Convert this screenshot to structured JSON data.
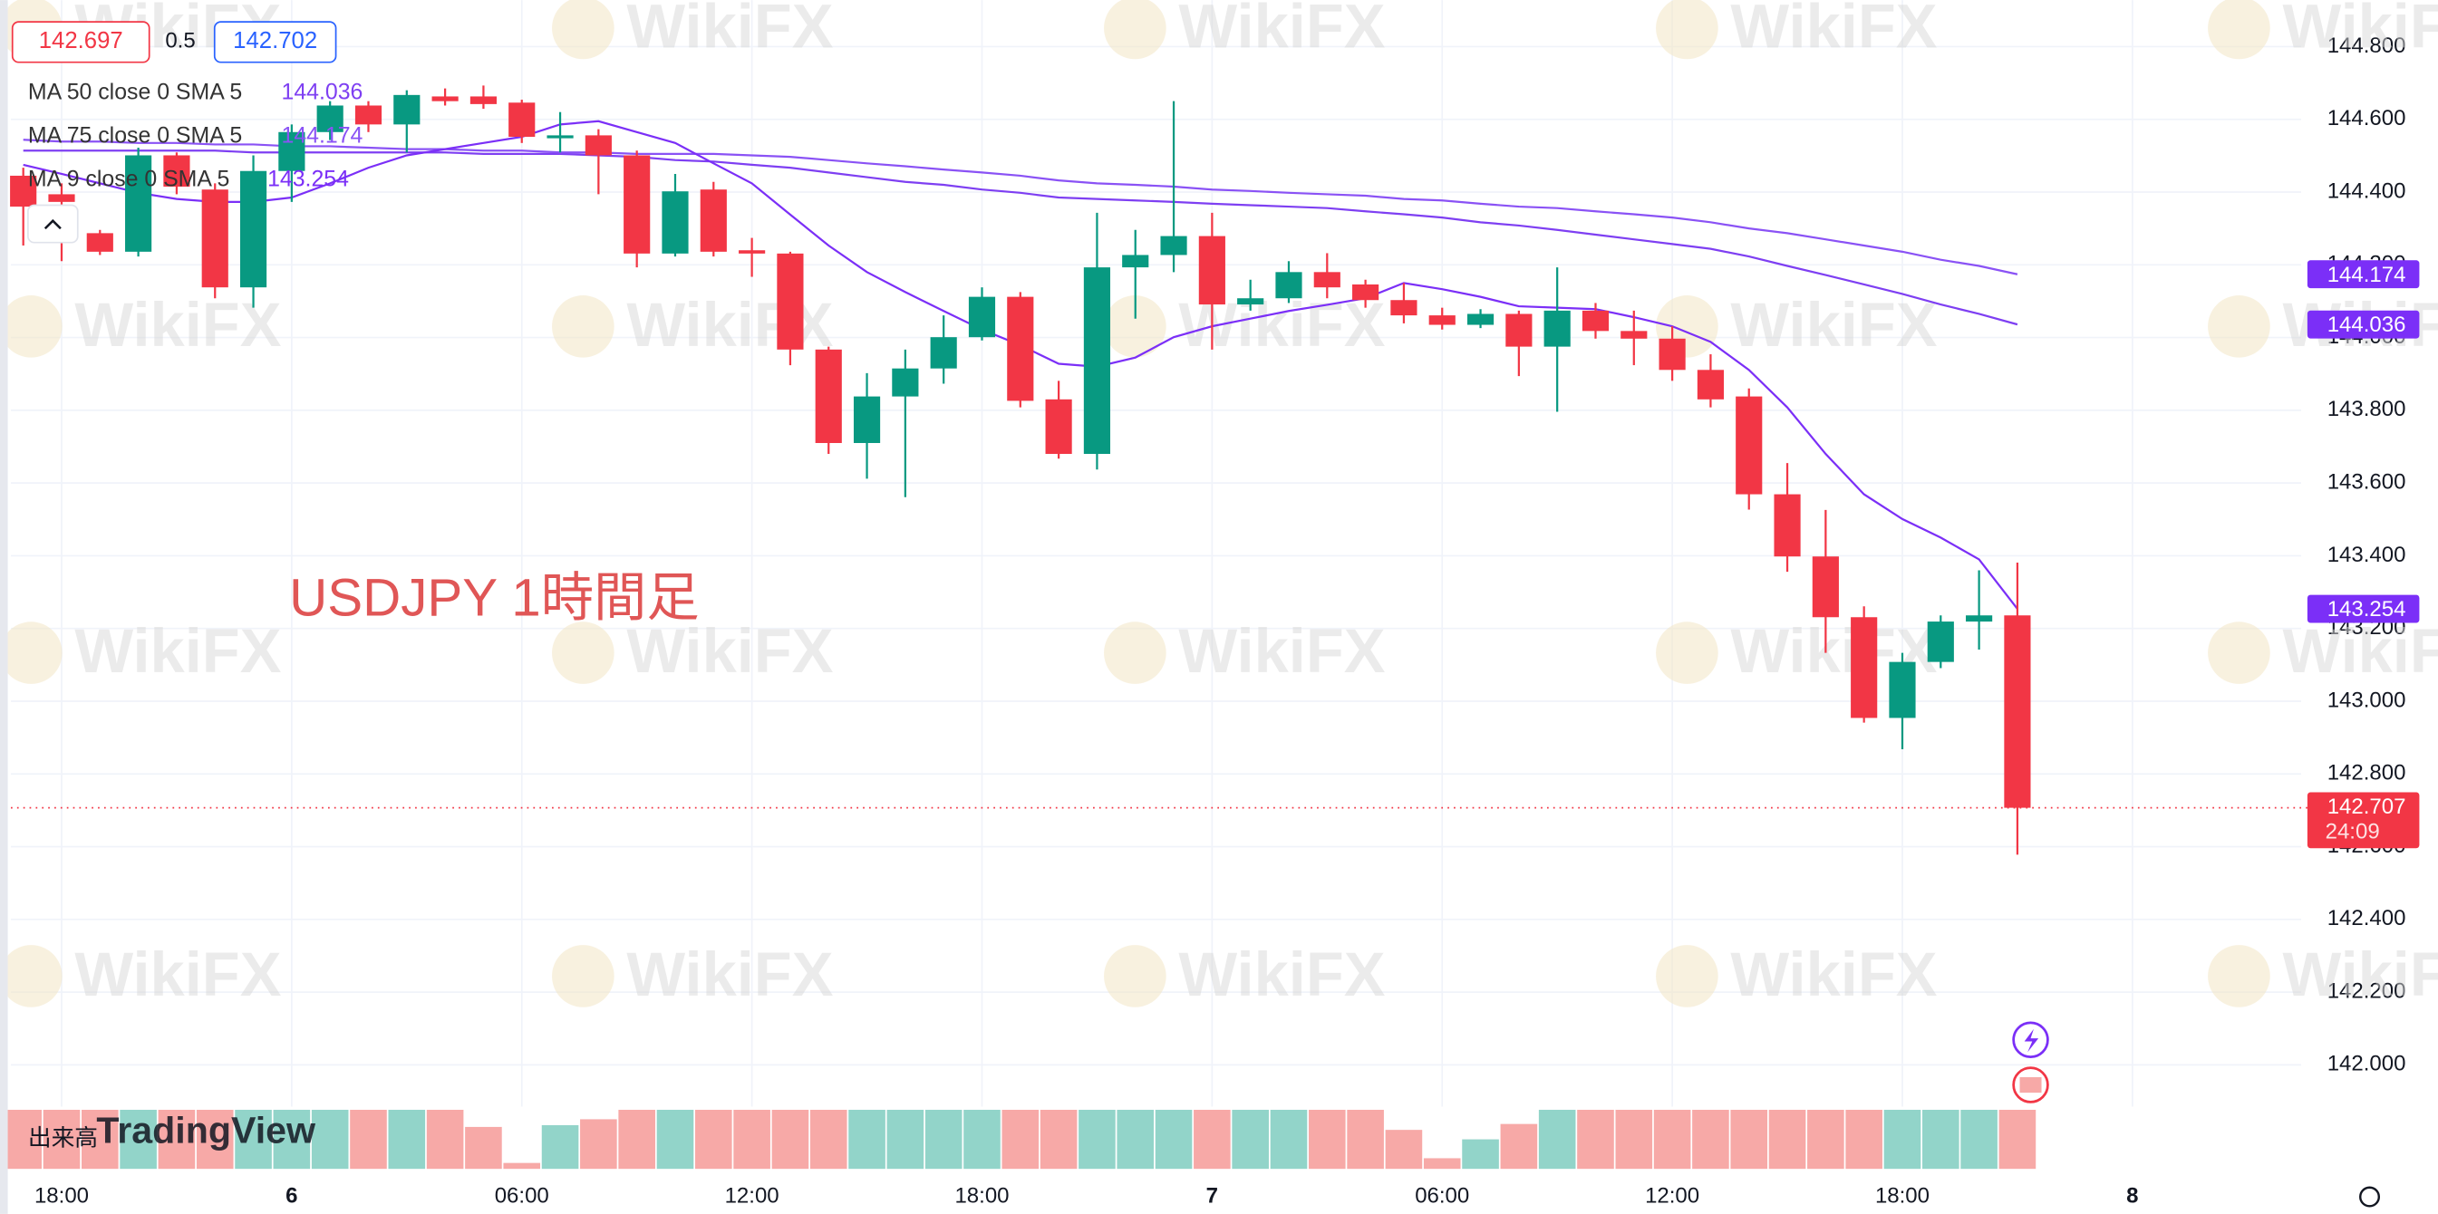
{
  "chart_data": {
    "type": "candlestick",
    "annotation": "USDJPY 1時間足",
    "watermark": "WikiFX",
    "logo": "TradingView",
    "quote": {
      "bid": 142.697,
      "spread": 0.5,
      "ask": 142.702
    },
    "up_color": "#089981",
    "down_color": "#f23645",
    "open": [
      144.445,
      144.394,
      144.287,
      144.236,
      144.501,
      144.407,
      144.138,
      144.458,
      144.565,
      144.638,
      144.586,
      144.663,
      144.663,
      144.646,
      144.548,
      144.556,
      144.501,
      144.231,
      144.407,
      144.24,
      144.231,
      143.967,
      143.71,
      143.838,
      143.915,
      144.001,
      144.112,
      143.83,
      143.68,
      144.193,
      144.227,
      144.279,
      144.091,
      144.108,
      144.18,
      144.146,
      144.103,
      144.061,
      144.035,
      144.065,
      143.975,
      144.074,
      144.018,
      143.997,
      143.911,
      143.838,
      143.569,
      143.398,
      143.231,
      142.954,
      143.108,
      143.219,
      143.236
    ],
    "high": [
      144.467,
      144.424,
      144.296,
      144.522,
      144.509,
      144.424,
      144.501,
      144.586,
      144.65,
      144.65,
      144.68,
      144.685,
      144.693,
      144.654,
      144.62,
      144.573,
      144.514,
      144.45,
      144.428,
      144.274,
      144.236,
      143.975,
      143.902,
      143.967,
      144.061,
      144.138,
      144.125,
      143.881,
      144.343,
      144.296,
      144.65,
      144.343,
      144.159,
      144.21,
      144.232,
      144.159,
      144.15,
      144.082,
      144.078,
      144.074,
      144.193,
      144.095,
      144.074,
      144.031,
      143.954,
      143.86,
      143.655,
      143.526,
      143.261,
      143.133,
      143.236,
      143.36,
      143.381
    ],
    "low": [
      144.253,
      144.21,
      144.227,
      144.223,
      144.394,
      144.108,
      144.082,
      144.373,
      144.543,
      144.565,
      144.509,
      144.638,
      144.629,
      144.535,
      144.509,
      144.394,
      144.193,
      144.223,
      144.223,
      144.167,
      143.924,
      143.68,
      143.612,
      143.561,
      143.873,
      143.992,
      143.808,
      143.667,
      143.637,
      144.052,
      144.18,
      143.967,
      144.074,
      144.095,
      144.108,
      144.082,
      144.039,
      144.022,
      144.026,
      143.894,
      143.796,
      143.997,
      143.924,
      143.881,
      143.808,
      143.527,
      143.356,
      143.133,
      142.941,
      142.868,
      143.091,
      143.142,
      142.578
    ],
    "close": [
      144.36,
      144.373,
      144.236,
      144.501,
      144.415,
      144.138,
      144.458,
      144.565,
      144.638,
      144.586,
      144.667,
      144.65,
      144.642,
      144.552,
      144.556,
      144.501,
      144.231,
      144.402,
      144.236,
      144.231,
      143.967,
      143.71,
      143.838,
      143.915,
      144.001,
      144.112,
      143.826,
      143.68,
      144.193,
      144.227,
      144.279,
      144.091,
      144.108,
      144.18,
      144.138,
      144.103,
      144.061,
      144.035,
      144.065,
      143.975,
      144.074,
      144.018,
      143.997,
      143.911,
      143.83,
      143.569,
      143.398,
      143.231,
      142.954,
      143.108,
      143.219,
      143.236,
      142.707
    ],
    "countdown": "24:09",
    "series": [
      {
        "name": "MA 50 close 0 SMA 5",
        "color": "#7e3ff2",
        "values": [
          144.514,
          144.514,
          144.514,
          144.514,
          144.514,
          144.514,
          144.509,
          144.509,
          144.509,
          144.509,
          144.509,
          144.509,
          144.505,
          144.505,
          144.505,
          144.501,
          144.497,
          144.488,
          144.484,
          144.475,
          144.467,
          144.454,
          144.441,
          144.428,
          144.42,
          144.407,
          144.398,
          144.385,
          144.381,
          144.377,
          144.373,
          144.368,
          144.364,
          144.36,
          144.356,
          144.347,
          144.339,
          144.33,
          144.317,
          144.308,
          144.296,
          144.283,
          144.27,
          144.257,
          144.244,
          144.223,
          144.197,
          144.172,
          144.146,
          144.12,
          144.091,
          144.065,
          144.036
        ]
      },
      {
        "name": "MA 75 close 0 SMA 5",
        "color": "#8a52f5",
        "values": [
          144.544,
          144.539,
          144.539,
          144.535,
          144.535,
          144.531,
          144.531,
          144.526,
          144.526,
          144.522,
          144.518,
          144.518,
          144.514,
          144.514,
          144.509,
          144.509,
          144.505,
          144.505,
          144.505,
          144.501,
          144.497,
          144.488,
          144.479,
          144.471,
          144.462,
          144.454,
          144.445,
          144.432,
          144.424,
          144.42,
          144.415,
          144.407,
          144.403,
          144.398,
          144.394,
          144.39,
          144.381,
          144.377,
          144.368,
          144.36,
          144.356,
          144.347,
          144.339,
          144.33,
          144.317,
          144.3,
          144.287,
          144.27,
          144.253,
          144.236,
          144.214,
          144.197,
          144.174
        ]
      },
      {
        "name": "MA 9 close 0 SMA 5",
        "color": "#7b2ff7",
        "values": [
          144.475,
          144.45,
          144.424,
          144.398,
          144.381,
          144.373,
          144.373,
          144.385,
          144.424,
          144.467,
          144.501,
          144.518,
          144.535,
          144.552,
          144.586,
          144.595,
          144.565,
          144.535,
          144.479,
          144.424,
          144.338,
          144.253,
          144.18,
          144.125,
          144.073,
          144.022,
          143.979,
          143.928,
          143.92,
          143.945,
          144.001,
          144.031,
          144.052,
          144.073,
          144.09,
          144.108,
          144.15,
          144.133,
          144.112,
          144.086,
          144.082,
          144.078,
          144.056,
          144.031,
          143.988,
          143.911,
          143.808,
          143.68,
          143.569,
          143.501,
          143.45,
          143.39,
          143.254
        ]
      }
    ],
    "volume": {
      "label": "出来高",
      "ylim": [
        0,
        100
      ],
      "up_color": "#92d4c9",
      "down_color": "#f7a9a7",
      "values": [
        100,
        100,
        100,
        100,
        100,
        100,
        100,
        100,
        100,
        100,
        100,
        100,
        71,
        10,
        74,
        84,
        100,
        100,
        100,
        100,
        100,
        100,
        100,
        100,
        100,
        100,
        100,
        100,
        100,
        100,
        100,
        100,
        100,
        100,
        100,
        100,
        66,
        18,
        50,
        76,
        100,
        100,
        100,
        100,
        100,
        100,
        100,
        100,
        100,
        100,
        100,
        100,
        100
      ]
    },
    "xlim": [
      -0.323,
      59.4
    ],
    "xticks": [
      {
        "value": 1,
        "label": "18:00"
      },
      {
        "value": 7,
        "label": "6"
      },
      {
        "value": 13,
        "label": "06:00"
      },
      {
        "value": 19,
        "label": "12:00"
      },
      {
        "value": 25,
        "label": "18:00"
      },
      {
        "value": 31,
        "label": "7"
      },
      {
        "value": 37,
        "label": "06:00"
      },
      {
        "value": 43,
        "label": "12:00"
      },
      {
        "value": 49,
        "label": "18:00"
      },
      {
        "value": 55,
        "label": "8"
      }
    ],
    "ylim": [
      141.885,
      144.928
    ],
    "yticks": [
      {
        "value": 142.0,
        "label": "142.000"
      },
      {
        "value": 142.2,
        "label": "142.200"
      },
      {
        "value": 142.4,
        "label": "142.400"
      },
      {
        "value": 142.6,
        "label": "142.600"
      },
      {
        "value": 142.8,
        "label": "142.800"
      },
      {
        "value": 143.0,
        "label": "143.000"
      },
      {
        "value": 143.2,
        "label": "143.200"
      },
      {
        "value": 143.4,
        "label": "143.400"
      },
      {
        "value": 143.6,
        "label": "143.600"
      },
      {
        "value": 143.8,
        "label": "143.800"
      },
      {
        "value": 144.0,
        "label": "144.000"
      },
      {
        "value": 144.2,
        "label": "144.200"
      },
      {
        "value": 144.4,
        "label": "144.400"
      },
      {
        "value": 144.6,
        "label": "144.600"
      },
      {
        "value": 144.8,
        "label": "144.800"
      }
    ],
    "grid": true
  }
}
